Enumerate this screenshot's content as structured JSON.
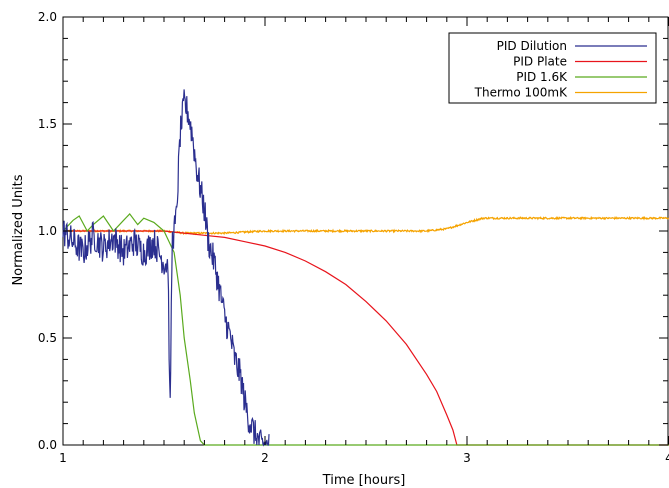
{
  "chart_data": {
    "type": "line",
    "xlabel": "Time [hours]",
    "ylabel": "Normalized Units",
    "xlim": [
      1,
      4
    ],
    "ylim": [
      0,
      2
    ],
    "x_ticks": [
      1,
      2,
      3,
      4
    ],
    "x_tick_labels": [
      "1",
      "2",
      "3",
      "4"
    ],
    "y_ticks": [
      0,
      0.5,
      1,
      1.5,
      2
    ],
    "y_tick_labels": [
      "0.0",
      "0.5",
      "1.0",
      "1.5",
      "2.0"
    ],
    "grid": false,
    "legend_position": "top-right",
    "series": [
      {
        "name": "PID Dilution",
        "color": "#2b2f8f",
        "noisy": true,
        "noise": 0.07,
        "x": [
          1.0,
          1.05,
          1.1,
          1.15,
          1.2,
          1.25,
          1.3,
          1.35,
          1.4,
          1.45,
          1.5,
          1.52,
          1.53,
          1.54,
          1.56,
          1.58,
          1.6,
          1.62,
          1.64,
          1.66,
          1.7,
          1.72,
          1.75,
          1.78,
          1.8,
          1.83,
          1.85,
          1.88,
          1.9,
          1.92,
          1.95,
          1.98,
          2.0,
          2.02
        ],
        "y": [
          1.0,
          0.95,
          0.9,
          0.98,
          0.92,
          0.97,
          0.9,
          0.95,
          0.9,
          0.95,
          0.85,
          0.85,
          0.1,
          0.95,
          1.05,
          1.45,
          1.6,
          1.55,
          1.45,
          1.3,
          1.1,
          0.95,
          0.85,
          0.7,
          0.6,
          0.5,
          0.4,
          0.32,
          0.2,
          0.12,
          0.05,
          0.0,
          0.0,
          0.0
        ]
      },
      {
        "name": "PID Plate",
        "color": "#e8141c",
        "x": [
          1.0,
          1.5,
          1.6,
          1.7,
          1.8,
          1.9,
          2.0,
          2.1,
          2.2,
          2.3,
          2.4,
          2.5,
          2.6,
          2.7,
          2.8,
          2.85,
          2.9,
          2.93,
          2.95,
          3.0,
          4.0
        ],
        "y": [
          1.0,
          1.0,
          0.99,
          0.98,
          0.97,
          0.95,
          0.93,
          0.9,
          0.86,
          0.81,
          0.75,
          0.67,
          0.58,
          0.47,
          0.33,
          0.25,
          0.14,
          0.07,
          0.0,
          0.0,
          0.0
        ]
      },
      {
        "name": "PID 1.6K",
        "color": "#5aaa1e",
        "x": [
          1.0,
          1.05,
          1.08,
          1.12,
          1.15,
          1.2,
          1.25,
          1.3,
          1.33,
          1.37,
          1.4,
          1.45,
          1.5,
          1.55,
          1.58,
          1.6,
          1.63,
          1.65,
          1.68,
          1.7,
          4.0
        ],
        "y": [
          1.0,
          1.05,
          1.07,
          1.0,
          1.03,
          1.07,
          1.0,
          1.05,
          1.08,
          1.03,
          1.06,
          1.04,
          1.0,
          0.9,
          0.7,
          0.5,
          0.3,
          0.15,
          0.02,
          0.0,
          0.0
        ],
        "noisy": false
      },
      {
        "name": "Thermo 100mK",
        "color": "#f5a300",
        "x": [
          1.0,
          1.5,
          1.6,
          1.8,
          2.0,
          2.5,
          2.8,
          2.9,
          3.0,
          3.08,
          3.2,
          3.5,
          4.0
        ],
        "y": [
          1.0,
          1.0,
          0.99,
          0.99,
          1.0,
          1.0,
          1.0,
          1.01,
          1.04,
          1.06,
          1.06,
          1.06,
          1.06
        ],
        "noisy": true,
        "noise": 0.004
      }
    ]
  }
}
